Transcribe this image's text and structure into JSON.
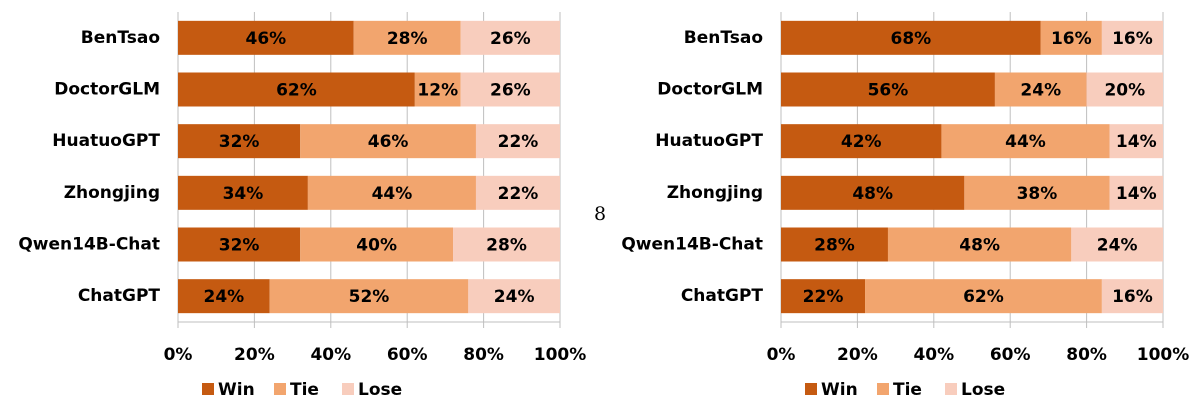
{
  "page_number": "8",
  "chart_data": [
    {
      "type": "stacked_bar_horizontal",
      "categories": [
        "BenTsao",
        "DoctorGLM",
        "HuatuoGPT",
        "Zhongjing",
        "Qwen14B-Chat",
        "ChatGPT"
      ],
      "series": [
        {
          "name": "Win",
          "color": "#c55a11",
          "values": [
            46,
            62,
            32,
            34,
            32,
            24
          ],
          "value_labels": [
            "46%",
            "62%",
            "32%",
            "34%",
            "32%",
            "24%"
          ]
        },
        {
          "name": "Tie",
          "color": "#f2a56e",
          "values": [
            28,
            12,
            46,
            44,
            40,
            52
          ],
          "value_labels": [
            "28%",
            "12%",
            "46%",
            "44%",
            "40%",
            "52%"
          ]
        },
        {
          "name": "Lose",
          "color": "#f8cdbd",
          "values": [
            26,
            26,
            22,
            22,
            28,
            24
          ],
          "value_labels": [
            "26%",
            "26%",
            "22%",
            "22%",
            "28%",
            "24%"
          ]
        }
      ],
      "xlim": [
        0,
        100
      ],
      "xticks": [
        {
          "value": 0,
          "label": "0%"
        },
        {
          "value": 20,
          "label": "20%"
        },
        {
          "value": 40,
          "label": "40%"
        },
        {
          "value": 60,
          "label": "60%"
        },
        {
          "value": 80,
          "label": "80%"
        },
        {
          "value": 100,
          "label": "100%"
        }
      ],
      "grid": true,
      "legend": "bottom"
    },
    {
      "type": "stacked_bar_horizontal",
      "categories": [
        "BenTsao",
        "DoctorGLM",
        "HuatuoGPT",
        "Zhongjing",
        "Qwen14B-Chat",
        "ChatGPT"
      ],
      "series": [
        {
          "name": "Win",
          "color": "#c55a11",
          "values": [
            68,
            56,
            42,
            48,
            28,
            22
          ],
          "value_labels": [
            "68%",
            "56%",
            "42%",
            "48%",
            "28%",
            "22%"
          ]
        },
        {
          "name": "Tie",
          "color": "#f2a56e",
          "values": [
            16,
            24,
            44,
            38,
            48,
            62
          ],
          "value_labels": [
            "16%",
            "24%",
            "44%",
            "38%",
            "48%",
            "62%"
          ]
        },
        {
          "name": "Lose",
          "color": "#f8cdbd",
          "values": [
            16,
            20,
            14,
            14,
            24,
            16
          ],
          "value_labels": [
            "16%",
            "20%",
            "14%",
            "14%",
            "24%",
            "16%"
          ]
        }
      ],
      "xlim": [
        0,
        100
      ],
      "xticks": [
        {
          "value": 0,
          "label": "0%"
        },
        {
          "value": 20,
          "label": "20%"
        },
        {
          "value": 40,
          "label": "40%"
        },
        {
          "value": 60,
          "label": "60%"
        },
        {
          "value": 80,
          "label": "80%"
        },
        {
          "value": 100,
          "label": "100%"
        }
      ],
      "grid": true,
      "legend": "bottom"
    }
  ]
}
